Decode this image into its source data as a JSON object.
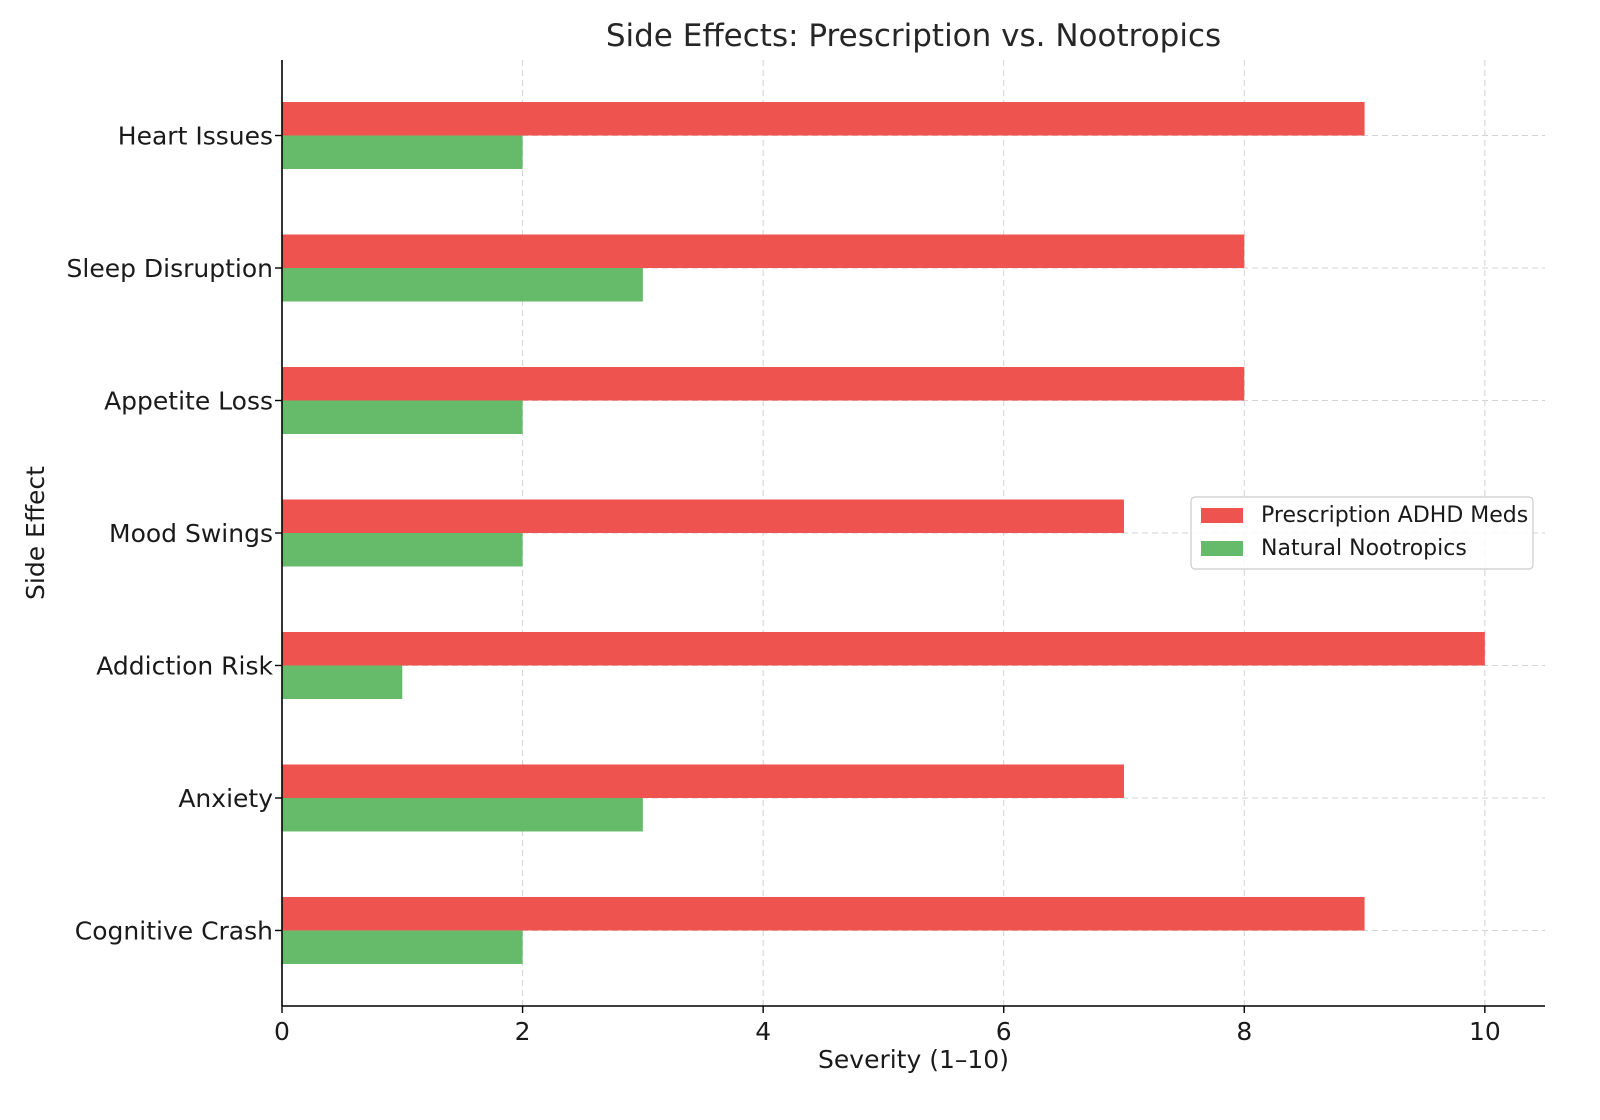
{
  "chart_data": {
    "type": "bar",
    "orientation": "horizontal",
    "title": "Side Effects: Prescription vs. Nootropics",
    "xlabel": "Severity (1–10)",
    "ylabel": "Side Effect",
    "xlim": [
      0,
      10.5
    ],
    "xticks": [
      0,
      2,
      4,
      6,
      8,
      10
    ],
    "categories": [
      "Heart Issues",
      "Sleep Disruption",
      "Appetite Loss",
      "Mood Swings",
      "Addiction Risk",
      "Anxiety",
      "Cognitive Crash"
    ],
    "series": [
      {
        "name": "Prescription ADHD Meds",
        "color": "#ef5350",
        "values": [
          9,
          8,
          8,
          7,
          10,
          7,
          9
        ]
      },
      {
        "name": "Natural Nootropics",
        "color": "#66bb6a",
        "values": [
          2,
          3,
          2,
          2,
          1,
          3,
          2
        ]
      }
    ],
    "grid": true,
    "legend_position": "center-right"
  }
}
